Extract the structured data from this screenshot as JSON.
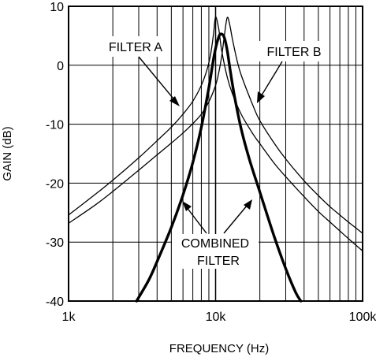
{
  "chart_data": {
    "type": "line",
    "title": "",
    "xlabel": "FREQUENCY (Hz)",
    "ylabel": "GAIN (dB)",
    "xscale": "log",
    "xlim": [
      1000,
      100000
    ],
    "ylim": [
      -40,
      10
    ],
    "grid": true,
    "x_ticks": [
      {
        "value": 1000,
        "label": "1k"
      },
      {
        "value": 10000,
        "label": "10k"
      },
      {
        "value": 100000,
        "label": "100k"
      }
    ],
    "y_ticks": [
      {
        "value": 10,
        "label": "10"
      },
      {
        "value": 0,
        "label": "0"
      },
      {
        "value": -10,
        "label": "-10"
      },
      {
        "value": -20,
        "label": "-20"
      },
      {
        "value": -30,
        "label": "-30"
      },
      {
        "value": -40,
        "label": "-40"
      }
    ],
    "series": [
      {
        "name": "FILTER A",
        "color": "#000000",
        "x": [
          1000,
          1500,
          2000,
          3000,
          4000,
          5000,
          6000,
          7000,
          8000,
          8800,
          9300,
          9700,
          10000,
          10500,
          11000,
          12000,
          13000,
          15000,
          18000,
          20000,
          25000,
          30000,
          40000,
          50000,
          60000,
          70000,
          80000,
          100000
        ],
        "y": [
          -25.4,
          -22.0,
          -19.5,
          -15.7,
          -12.8,
          -10.5,
          -8.3,
          -6.1,
          -3.4,
          -0.5,
          2.2,
          5.5,
          8.2,
          6.2,
          2.5,
          -2.0,
          -4.8,
          -8.4,
          -11.7,
          -13.3,
          -16.6,
          -18.9,
          -22.3,
          -24.8,
          -26.6,
          -28.1,
          -29.4,
          -31.5
        ]
      },
      {
        "name": "FILTER B",
        "color": "#000000",
        "x": [
          1000,
          1500,
          2000,
          3000,
          4000,
          5000,
          6000,
          7000,
          8000,
          9000,
          10000,
          10500,
          11000,
          11500,
          12000,
          12500,
          13000,
          14000,
          15000,
          18000,
          20000,
          25000,
          30000,
          40000,
          50000,
          60000,
          70000,
          80000,
          100000
        ],
        "y": [
          -26.8,
          -23.8,
          -21.4,
          -17.8,
          -15.2,
          -13.2,
          -11.5,
          -9.9,
          -8.3,
          -6.2,
          -3.4,
          -1.3,
          1.5,
          5.2,
          8.1,
          6.8,
          4.5,
          0.8,
          -1.8,
          -6.9,
          -9.4,
          -13.2,
          -15.9,
          -19.6,
          -22.1,
          -24.0,
          -25.4,
          -26.6,
          -28.5
        ]
      },
      {
        "name": "COMBINED FILTER",
        "color": "#000000",
        "x": [
          2900,
          3500,
          4000,
          5000,
          6000,
          7000,
          8000,
          9000,
          9800,
          10500,
          11000,
          11500,
          12000,
          12600,
          13500,
          15000,
          17000,
          20000,
          25000,
          30000,
          35000,
          38000
        ],
        "y": [
          -40.0,
          -36.5,
          -33.3,
          -27.5,
          -22.0,
          -16.5,
          -10.5,
          -3.8,
          1.8,
          4.8,
          5.3,
          4.6,
          2.5,
          -1.0,
          -5.5,
          -11.0,
          -16.0,
          -21.5,
          -29.0,
          -34.5,
          -38.5,
          -40.0
        ]
      }
    ],
    "annotations": [
      {
        "text": "FILTER A"
      },
      {
        "text": "FILTER B"
      },
      {
        "lines": [
          "COMBINED",
          "FILTER"
        ]
      }
    ]
  }
}
